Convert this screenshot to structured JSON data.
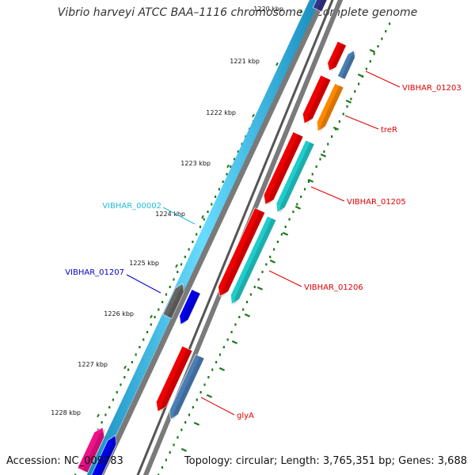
{
  "title": "Vibrio harveyi ATCC BAA–1116 chromosome I, complete genome",
  "footer": {
    "accession": "Accession: NC_009783",
    "summary": "Topology: circular; Length: 3,765,351 bp; Genes: 3,688"
  },
  "ticks": [
    "1220 kbp",
    "1221 kbp",
    "1222 kbp",
    "1223 kbp",
    "1224 kbp",
    "1225 kbp",
    "1226 kbp",
    "1227 kbp",
    "1228 kbp"
  ],
  "gene_labels": [
    {
      "name": "VIBHAR_01203",
      "color": "#e00000"
    },
    {
      "name": "treR",
      "color": "#e00000"
    },
    {
      "name": "VIBHAR_01205",
      "color": "#e00000"
    },
    {
      "name": "VIBHAR_01206",
      "color": "#e00000"
    },
    {
      "name": "glyA",
      "color": "#e00000"
    },
    {
      "name": "VIBHAR_00002",
      "color": "#22bbdd"
    },
    {
      "name": "VIBHAR_01207",
      "color": "#0000cc"
    }
  ],
  "colors": {
    "backbone": "#44ccff",
    "backbone_edge": "#1a8fc0",
    "shadow": "#888888",
    "gene_red": "#ee0000",
    "gene_orange": "#ff8800",
    "gene_cyan": "#22cccc",
    "gene_steel": "#4a7fb5",
    "gene_blue": "#0000ee",
    "gene_gray": "#666666",
    "gene_magenta": "#ee1188",
    "gene_purple": "#333388",
    "tick_dots": "#1a7a1a",
    "label_red": "#e00000"
  }
}
